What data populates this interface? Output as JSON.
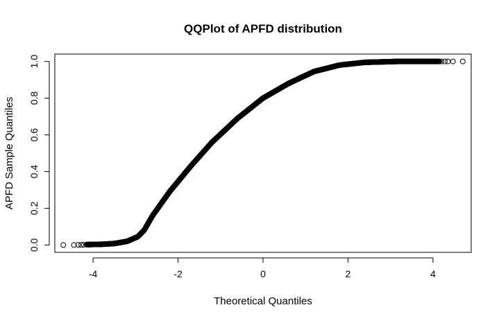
{
  "chart_data": {
    "type": "scatter",
    "title": "QQPlot of APFD distribution",
    "xlabel": "Theoretical Quantiles",
    "ylabel": "APFD Sample Quantiles",
    "xlim": [
      -4.9,
      4.9
    ],
    "ylim": [
      -0.04,
      1.04
    ],
    "xticks": [
      -4,
      -2,
      0,
      2,
      4
    ],
    "yticks": [
      0.0,
      0.2,
      0.4,
      0.6,
      0.8,
      1.0
    ],
    "xtick_labels": [
      "-4",
      "-2",
      "0",
      "2",
      "4"
    ],
    "ytick_labels": [
      "0.0",
      "0.2",
      "0.4",
      "0.6",
      "0.8",
      "1.0"
    ],
    "marker": "open-circle",
    "grid": false,
    "legend": "none",
    "curve_knots": [
      [
        -4.7,
        0.0
      ],
      [
        -4.45,
        0.0
      ],
      [
        -4.2,
        0.002
      ],
      [
        -3.8,
        0.004
      ],
      [
        -3.5,
        0.008
      ],
      [
        -3.2,
        0.02
      ],
      [
        -2.95,
        0.045
      ],
      [
        -2.8,
        0.08
      ],
      [
        -2.6,
        0.16
      ],
      [
        -2.2,
        0.29
      ],
      [
        -1.7,
        0.43
      ],
      [
        -1.2,
        0.56
      ],
      [
        -0.6,
        0.69
      ],
      [
        0.0,
        0.8
      ],
      [
        0.6,
        0.88
      ],
      [
        1.2,
        0.945
      ],
      [
        1.8,
        0.98
      ],
      [
        2.4,
        0.995
      ],
      [
        3.2,
        1.0
      ],
      [
        4.2,
        1.0
      ],
      [
        4.7,
        1.0
      ]
    ],
    "tail_points": [
      [
        -4.7,
        0.0
      ],
      [
        -4.45,
        0.0
      ],
      [
        -4.35,
        0.001
      ],
      [
        -4.28,
        0.001
      ],
      [
        -4.22,
        0.001
      ],
      [
        4.2,
        1.0
      ],
      [
        4.28,
        1.0
      ],
      [
        4.35,
        1.0
      ],
      [
        4.47,
        1.0
      ],
      [
        4.7,
        1.0
      ]
    ]
  }
}
